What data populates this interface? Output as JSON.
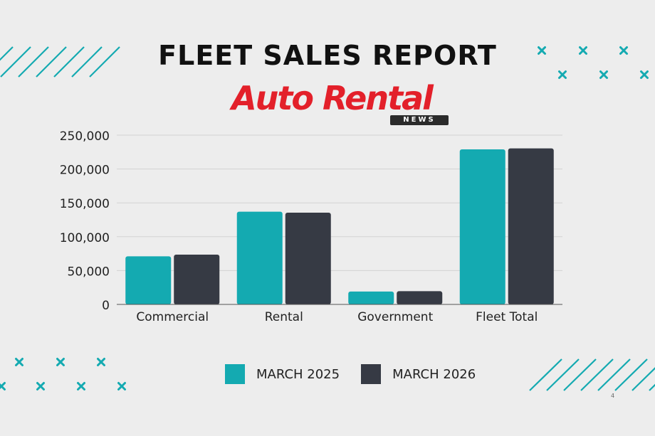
{
  "header": {
    "title": "FLEET SALES REPORT",
    "logo_text": "Auto Rental",
    "logo_sub": "NEWS"
  },
  "page_number": "4",
  "colors": {
    "series_2025": "#14aab1",
    "series_2026": "#363a44",
    "accent_teal": "#14aab1",
    "logo_red": "#e3202a",
    "background": "#ededed"
  },
  "decorations": {
    "top_left": "diagonal-stripes",
    "bottom_right": "diagonal-stripes",
    "top_right": "x-marks",
    "bottom_left": "x-marks"
  },
  "chart_data": {
    "type": "bar",
    "title": "",
    "xlabel": "",
    "ylabel": "",
    "categories": [
      "Commercial",
      "Rental",
      "Government",
      "Fleet Total"
    ],
    "series": [
      {
        "name": "MARCH 2025",
        "values": [
          71000,
          137000,
          19000,
          229000
        ]
      },
      {
        "name": "MARCH 2026",
        "values": [
          73500,
          135500,
          19500,
          230500
        ]
      }
    ],
    "ylim": [
      0,
      250000
    ],
    "yticks": [
      0,
      50000,
      100000,
      150000,
      200000,
      250000
    ],
    "ytick_labels": [
      "0",
      "50,000",
      "100,000",
      "150,000",
      "200,000",
      "250,000"
    ],
    "grid": true,
    "legend_position": "bottom"
  }
}
